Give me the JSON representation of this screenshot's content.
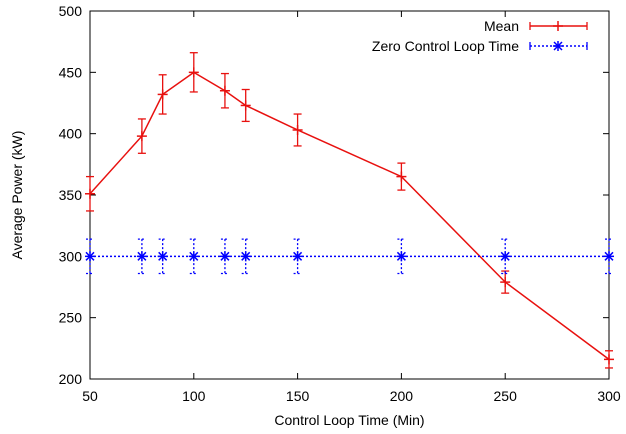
{
  "chart_data": {
    "type": "line",
    "xlabel": "Control Loop Time (Min)",
    "ylabel": "Average Power (kW)",
    "xlim": [
      50,
      300
    ],
    "ylim": [
      200,
      500
    ],
    "x_ticks": [
      50,
      100,
      150,
      200,
      250,
      300
    ],
    "y_ticks": [
      200,
      250,
      300,
      350,
      400,
      450,
      500
    ],
    "grid": false,
    "legend_position": "top-right",
    "series": [
      {
        "name": "Mean",
        "color": "#e8110f",
        "line_style": "solid",
        "marker": "plus",
        "x": [
          50,
          75,
          85,
          100,
          115,
          125,
          150,
          200,
          250,
          300
        ],
        "y": [
          351,
          398,
          432,
          450,
          435,
          423,
          403,
          365,
          279,
          216
        ],
        "err": [
          14,
          14,
          16,
          16,
          14,
          13,
          13,
          11,
          9,
          7
        ]
      },
      {
        "name": "Zero Control Loop Time",
        "color": "#0000ff",
        "line_style": "dotted",
        "marker": "asterisk",
        "x": [
          50,
          75,
          85,
          100,
          115,
          125,
          150,
          200,
          250,
          300
        ],
        "y": [
          300,
          300,
          300,
          300,
          300,
          300,
          300,
          300,
          300,
          300
        ],
        "err": [
          14,
          14,
          14,
          14,
          14,
          14,
          14,
          14,
          14,
          14
        ]
      }
    ]
  }
}
